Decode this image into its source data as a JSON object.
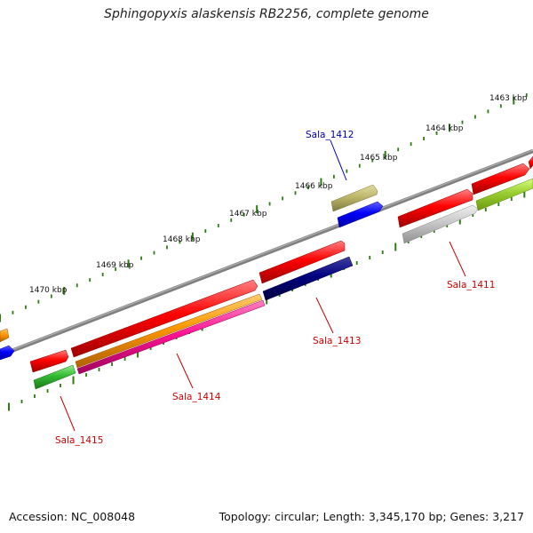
{
  "title": "Sphingopyxis alaskensis RB2256, complete genome",
  "footer": {
    "accession": "Accession: NC_008048",
    "summary": "Topology: circular; Length: 3,345,170 bp; Genes: 3,217"
  },
  "ticks": [
    {
      "label": "1463 kbp",
      "position_kbp": 1463
    },
    {
      "label": "1464 kbp",
      "position_kbp": 1464
    },
    {
      "label": "1465 kbp",
      "position_kbp": 1465
    },
    {
      "label": "1466 kbp",
      "position_kbp": 1466
    },
    {
      "label": "1467 kbp",
      "position_kbp": 1467
    },
    {
      "label": "1468 kbp",
      "position_kbp": 1468
    },
    {
      "label": "1469 kbp",
      "position_kbp": 1469
    },
    {
      "label": "1470 kbp",
      "position_kbp": 1470
    }
  ],
  "gene_labels": [
    {
      "name": "Sala_1412",
      "color": "#0000aa"
    },
    {
      "name": "Sala_1411",
      "color": "#cc0000"
    },
    {
      "name": "Sala_1413",
      "color": "#cc0000"
    },
    {
      "name": "Sala_1414",
      "color": "#cc0000"
    },
    {
      "name": "Sala_1415",
      "color": "#cc0000"
    }
  ],
  "colors": {
    "backbone": "#808080",
    "tick_major": "#2e7d12",
    "tick_minor": "#1f8a1f",
    "red": "#ff0000",
    "navy": "#00007f",
    "blue": "#0000ff",
    "khaki": "#bdb76b",
    "gray": "#c8c8c8",
    "yellowgreen": "#9acd32",
    "orange": "#ff9900",
    "pink": "#ff1493",
    "green": "#33bb33"
  }
}
